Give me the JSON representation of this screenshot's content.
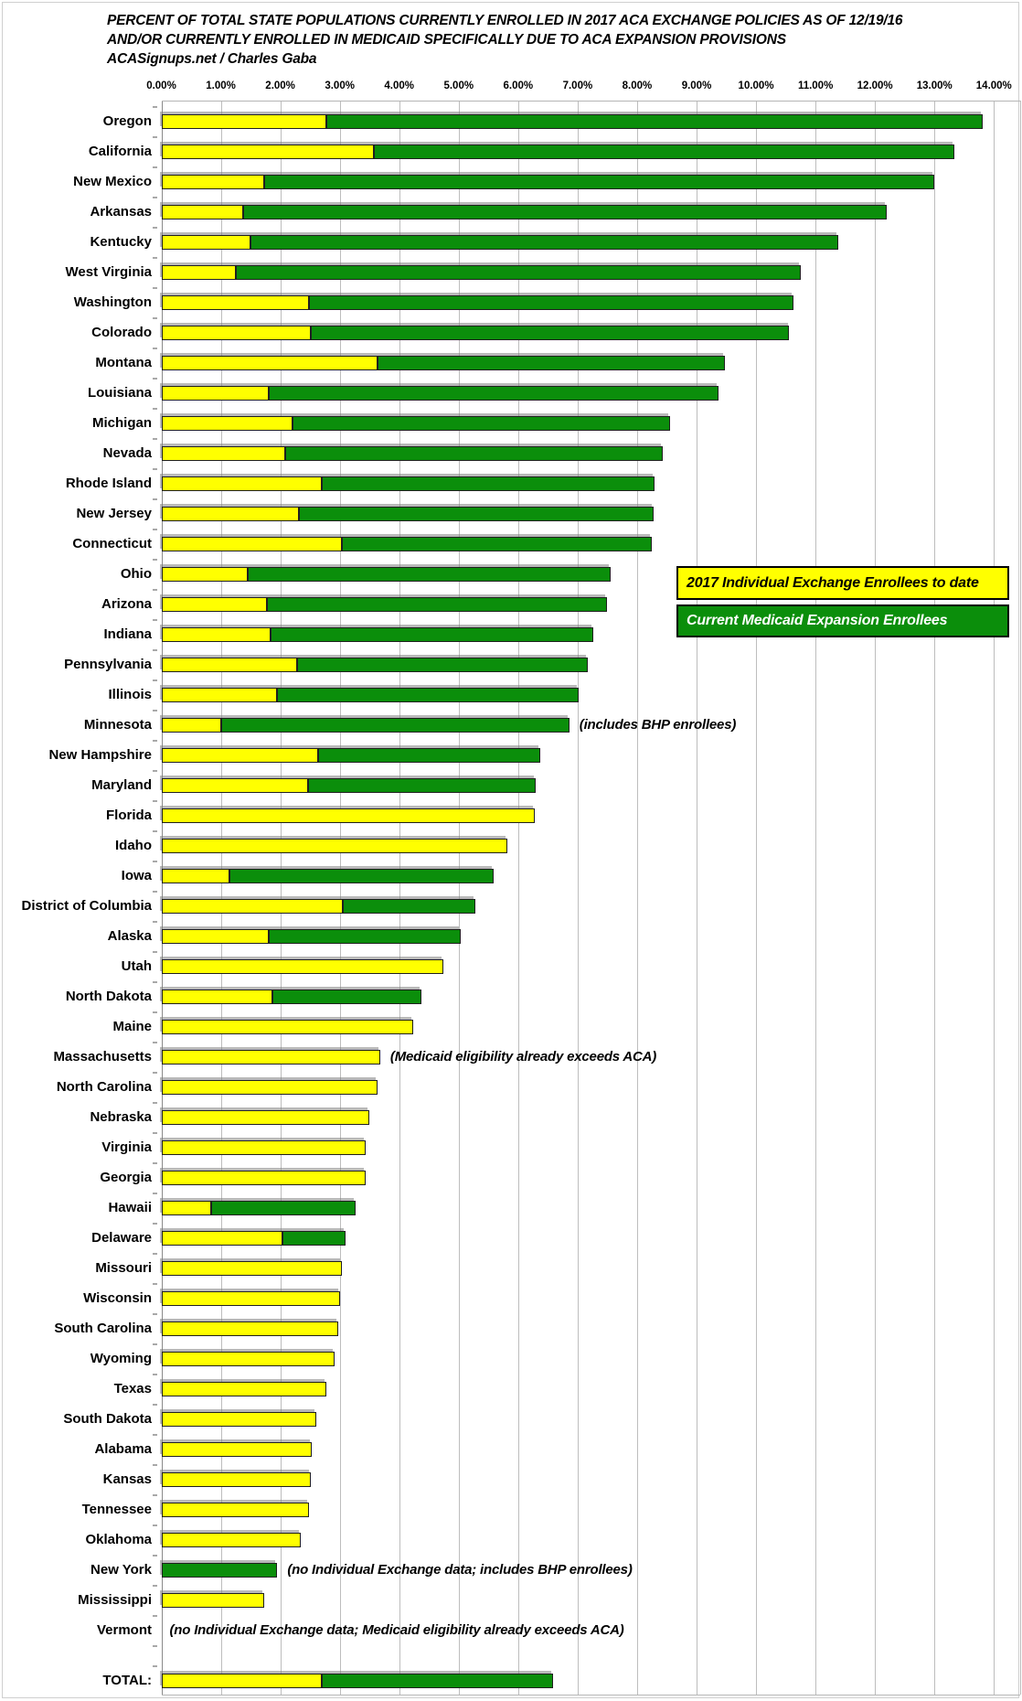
{
  "title": {
    "line1": "PERCENT OF TOTAL STATE POPULATIONS CURRENTLY ENROLLED IN 2017 ACA EXCHANGE POLICIES AS OF 12/19/16",
    "line2": "AND/OR CURRENTLY ENROLLED IN MEDICAID SPECIFICALLY DUE TO ACA EXPANSION PROVISIONS",
    "line3": "ACASignups.net / Charles Gaba"
  },
  "legend": {
    "exchange_label": "2017 Individual Exchange Enrollees to date",
    "medicaid_label": "Current Medicaid Expansion Enrollees"
  },
  "colors": {
    "exchange": "#FFFF00",
    "medicaid": "#0B8E0B",
    "grid": "#BDBDBD",
    "axis_line": "#8A8A8A",
    "bar_border": "#1F1F1F",
    "shadow": "#9A9A9A",
    "legend_exchange_text": "#000000",
    "legend_medicaid_text": "#FFFFFF"
  },
  "chart_data": {
    "type": "bar",
    "orientation": "horizontal-stacked",
    "title": "PERCENT OF TOTAL STATE POPULATIONS CURRENTLY ENROLLED IN 2017 ACA EXCHANGE POLICIES AS OF 12/19/16 AND/OR CURRENTLY ENROLLED IN MEDICAID SPECIFICALLY DUE TO ACA EXPANSION PROVISIONS",
    "credit": "ACASignups.net / Charles Gaba",
    "x_axis": {
      "min": 0,
      "max": 14,
      "step": 1,
      "unit": "%",
      "labels": [
        "0.00%",
        "1.00%",
        "2.00%",
        "3.00%",
        "4.00%",
        "5.00%",
        "6.00%",
        "7.00%",
        "8.00%",
        "9.00%",
        "10.00%",
        "11.00%",
        "12.00%",
        "13.00%",
        "14.00%"
      ],
      "grid": true
    },
    "series": [
      {
        "name": "2017 Individual Exchange Enrollees to date",
        "color_key": "exchange"
      },
      {
        "name": "Current Medicaid Expansion Enrollees",
        "color_key": "medicaid"
      }
    ],
    "legend_position": "right-middle",
    "rows": [
      {
        "state": "Oregon",
        "exchange": 2.78,
        "medicaid": 11.03
      },
      {
        "state": "California",
        "exchange": 3.58,
        "medicaid": 9.76
      },
      {
        "state": "New Mexico",
        "exchange": 1.73,
        "medicaid": 11.27
      },
      {
        "state": "Arkansas",
        "exchange": 1.37,
        "medicaid": 10.83
      },
      {
        "state": "Kentucky",
        "exchange": 1.5,
        "medicaid": 9.88
      },
      {
        "state": "West Virginia",
        "exchange": 1.26,
        "medicaid": 9.49
      },
      {
        "state": "Washington",
        "exchange": 2.48,
        "medicaid": 8.15
      },
      {
        "state": "Colorado",
        "exchange": 2.52,
        "medicaid": 8.04
      },
      {
        "state": "Montana",
        "exchange": 3.64,
        "medicaid": 5.84
      },
      {
        "state": "Louisiana",
        "exchange": 1.8,
        "medicaid": 7.57
      },
      {
        "state": "Michigan",
        "exchange": 2.2,
        "medicaid": 6.36
      },
      {
        "state": "Nevada",
        "exchange": 2.08,
        "medicaid": 6.35
      },
      {
        "state": "Rhode Island",
        "exchange": 2.69,
        "medicaid": 5.61
      },
      {
        "state": "New Jersey",
        "exchange": 2.31,
        "medicaid": 5.96
      },
      {
        "state": "Connecticut",
        "exchange": 3.04,
        "medicaid": 5.2
      },
      {
        "state": "Ohio",
        "exchange": 1.45,
        "medicaid": 6.11
      },
      {
        "state": "Arizona",
        "exchange": 1.78,
        "medicaid": 5.71
      },
      {
        "state": "Indiana",
        "exchange": 1.83,
        "medicaid": 5.44
      },
      {
        "state": "Pennsylvania",
        "exchange": 2.29,
        "medicaid": 4.88
      },
      {
        "state": "Illinois",
        "exchange": 1.95,
        "medicaid": 5.06
      },
      {
        "state": "Minnesota",
        "exchange": 1.0,
        "medicaid": 5.86,
        "note": "(includes BHP enrollees)"
      },
      {
        "state": "New Hampshire",
        "exchange": 2.64,
        "medicaid": 3.73
      },
      {
        "state": "Maryland",
        "exchange": 2.47,
        "medicaid": 3.82
      },
      {
        "state": "Florida",
        "exchange": 6.28,
        "medicaid": 0
      },
      {
        "state": "Idaho",
        "exchange": 5.82,
        "medicaid": 0
      },
      {
        "state": "Iowa",
        "exchange": 1.15,
        "medicaid": 4.43
      },
      {
        "state": "District of Columbia",
        "exchange": 3.05,
        "medicaid": 2.23
      },
      {
        "state": "Alaska",
        "exchange": 1.8,
        "medicaid": 3.23
      },
      {
        "state": "Utah",
        "exchange": 4.74,
        "medicaid": 0
      },
      {
        "state": "North Dakota",
        "exchange": 1.87,
        "medicaid": 2.51
      },
      {
        "state": "Maine",
        "exchange": 4.23,
        "medicaid": 0
      },
      {
        "state": "Massachusetts",
        "exchange": 3.68,
        "medicaid": 0,
        "note": "(Medicaid eligibility already exceeds ACA)"
      },
      {
        "state": "North Carolina",
        "exchange": 3.64,
        "medicaid": 0
      },
      {
        "state": "Nebraska",
        "exchange": 3.49,
        "medicaid": 0
      },
      {
        "state": "Virginia",
        "exchange": 3.44,
        "medicaid": 0
      },
      {
        "state": "Georgia",
        "exchange": 3.43,
        "medicaid": 0
      },
      {
        "state": "Hawaii",
        "exchange": 0.84,
        "medicaid": 2.43
      },
      {
        "state": "Delaware",
        "exchange": 2.03,
        "medicaid": 1.06
      },
      {
        "state": "Missouri",
        "exchange": 3.04,
        "medicaid": 0
      },
      {
        "state": "Wisconsin",
        "exchange": 3.01,
        "medicaid": 0
      },
      {
        "state": "South Carolina",
        "exchange": 2.97,
        "medicaid": 0
      },
      {
        "state": "Wyoming",
        "exchange": 2.92,
        "medicaid": 0
      },
      {
        "state": "Texas",
        "exchange": 2.78,
        "medicaid": 0
      },
      {
        "state": "South Dakota",
        "exchange": 2.61,
        "medicaid": 0
      },
      {
        "state": "Alabama",
        "exchange": 2.53,
        "medicaid": 0
      },
      {
        "state": "Kansas",
        "exchange": 2.51,
        "medicaid": 0
      },
      {
        "state": "Tennessee",
        "exchange": 2.48,
        "medicaid": 0
      },
      {
        "state": "Oklahoma",
        "exchange": 2.35,
        "medicaid": 0
      },
      {
        "state": "New York",
        "exchange": 0,
        "medicaid": 1.95,
        "note": "(no Individual Exchange data; includes BHP enrollees)"
      },
      {
        "state": "Mississippi",
        "exchange": 1.73,
        "medicaid": 0
      },
      {
        "state": "Vermont",
        "exchange": 0,
        "medicaid": 0,
        "note": "(no Individual Exchange data; Medicaid eligibility already exceeds ACA)"
      },
      {
        "state": "TOTAL:",
        "exchange": 2.7,
        "medicaid": 3.88,
        "total_row": true
      }
    ]
  }
}
